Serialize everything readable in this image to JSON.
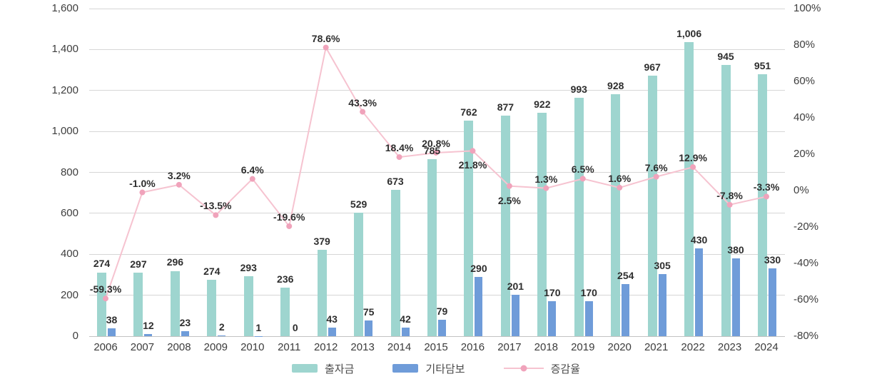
{
  "chart_data": {
    "type": "combo",
    "title": "",
    "categories": [
      "2006",
      "2007",
      "2008",
      "2009",
      "2010",
      "2011",
      "2012",
      "2013",
      "2014",
      "2015",
      "2016",
      "2017",
      "2018",
      "2019",
      "2020",
      "2021",
      "2022",
      "2023",
      "2024"
    ],
    "series": [
      {
        "name": "출자금",
        "type": "bar",
        "axis": "left",
        "color": "#9ed5cf",
        "values": [
          274,
          297,
          296,
          274,
          293,
          236,
          379,
          529,
          673,
          785,
          762,
          877,
          922,
          993,
          928,
          967,
          1006,
          945,
          951
        ],
        "labels": [
          "274",
          "297",
          "296",
          "274",
          "293",
          "236",
          "379",
          "529",
          "673",
          "785",
          "762",
          "877",
          "922",
          "993",
          "928",
          "967",
          "1,006",
          "945",
          "951"
        ]
      },
      {
        "name": "기타담보",
        "type": "bar",
        "axis": "left",
        "color": "#6f9cd9",
        "values": [
          38,
          12,
          23,
          2,
          1,
          0,
          43,
          75,
          42,
          79,
          290,
          201,
          170,
          170,
          254,
          305,
          430,
          380,
          330
        ],
        "labels": [
          "38",
          "12",
          "23",
          "2",
          "1",
          "0",
          "43",
          "75",
          "42",
          "79",
          "290",
          "201",
          "170",
          "170",
          "254",
          "305",
          "430",
          "380",
          "330"
        ]
      },
      {
        "name": "증감율",
        "type": "line",
        "axis": "right",
        "color": "#f6c3d0",
        "marker_color": "#f0a3bb",
        "values": [
          -59.3,
          -1.0,
          3.2,
          -13.5,
          6.4,
          -19.6,
          78.6,
          43.3,
          18.4,
          20.8,
          21.8,
          2.5,
          1.3,
          6.5,
          1.6,
          7.6,
          12.9,
          -7.8,
          -3.3
        ],
        "labels": [
          "-59.3%",
          "-1.0%",
          "3.2%",
          "-13.5%",
          "6.4%",
          "-19.6%",
          "78.6%",
          "43.3%",
          "18.4%",
          "20.8%",
          "21.8%",
          "2.5%",
          "1.3%",
          "6.5%",
          "1.6%",
          "7.6%",
          "12.9%",
          "-7.8%",
          "-3.3%"
        ],
        "label_below_indices": [
          10,
          11
        ]
      }
    ],
    "left_axis": {
      "min": 0,
      "max": 1600,
      "tick_labels": [
        "1,600",
        "1,400",
        "1,200",
        "1,000",
        "800",
        "600",
        "400",
        "200",
        "0"
      ]
    },
    "right_axis": {
      "min": -80,
      "max": 100,
      "tick_labels": [
        "100%",
        "80%",
        "60%",
        "40%",
        "20%",
        "0%",
        "-20%",
        "-40%",
        "-60%",
        "-80%"
      ]
    },
    "legend": [
      {
        "label": "출자금",
        "swatch": "teal-bar-swatch"
      },
      {
        "label": "기타담보",
        "swatch": "blue-bar-swatch"
      },
      {
        "label": "증감율",
        "swatch": "pink-line-swatch"
      }
    ],
    "layout": {
      "grid": true,
      "legend_position": "bottom",
      "grid_color": "#d6d6d6",
      "tick_text_color": "#3e3e3e",
      "data_label_color": "#2e2e2e",
      "bar_render_note": "teal bar pixel height equals 출자금 + 기타담보 total on left axis"
    }
  }
}
